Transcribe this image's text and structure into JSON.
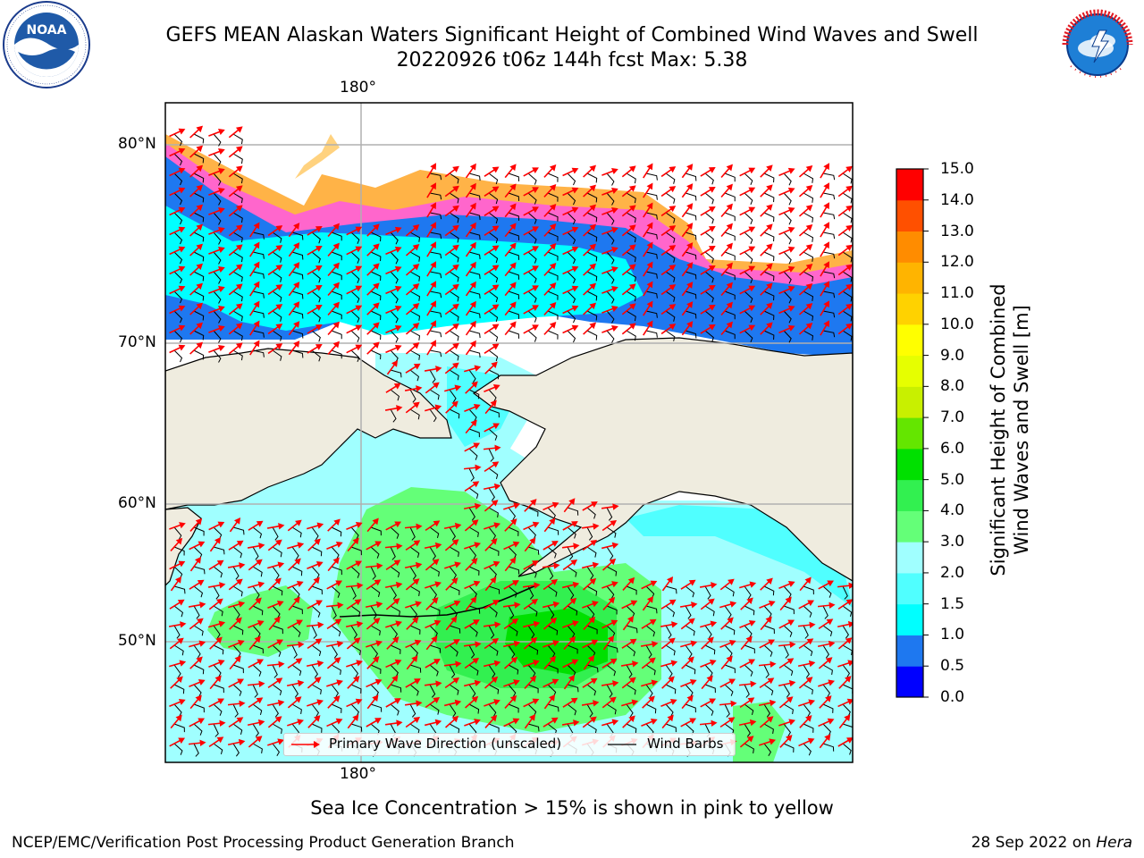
{
  "header": {
    "title_line1": "GEFS MEAN Alaskan Waters Significant Height of Combined Wind Waves and Swell",
    "title_line2": "20220926 t06z 144h fcst   Max: 5.38"
  },
  "logos": {
    "left": {
      "name": "NOAA",
      "ring_text": "NATIONAL OCEANIC AND ATMOSPHERIC ADMINISTRATION · U.S. DEPARTMENT OF COMMERCE"
    },
    "right": {
      "name": "NATIONAL WEATHER SERVICE"
    }
  },
  "map": {
    "lon_labels": [
      "180°",
      "180°"
    ],
    "lat_labels": [
      "80°N",
      "70°N",
      "60°N",
      "50°N"
    ],
    "colors": {
      "land": "#efecdf",
      "gridline": "#b0b0b0",
      "arrow": "#ff0000",
      "barb": "#000000"
    }
  },
  "legend": {
    "primary_wave": "Primary Wave Direction (unscaled)",
    "wind_barbs": "Wind Barbs"
  },
  "colorbar": {
    "label_line1": "Significant Height of Combined",
    "label_line2": "Wind Waves and Swell [m]",
    "ticks": [
      "0.0",
      "0.5",
      "1.0",
      "1.5",
      "2.0",
      "3.0",
      "4.0",
      "5.0",
      "6.0",
      "7.0",
      "8.0",
      "9.0",
      "10.0",
      "11.0",
      "12.0",
      "13.0",
      "14.0",
      "15.0"
    ],
    "colors": [
      "#0000ff",
      "#1e78f0",
      "#00ffff",
      "#50ffff",
      "#a0ffff",
      "#64ff78",
      "#32f050",
      "#00e000",
      "#64e600",
      "#c8f000",
      "#e6ff00",
      "#ffff00",
      "#ffd200",
      "#ffb400",
      "#ff8c00",
      "#ff5000",
      "#ff0000"
    ]
  },
  "footer": {
    "sea_ice_note": "Sea Ice Concentration > 15% is shown in pink to yellow",
    "credit_left": "NCEP/EMC/Verification Post Processing Product Generation Branch",
    "credit_right_date": "28 Sep 2022 on ",
    "credit_right_host": "Hera"
  }
}
